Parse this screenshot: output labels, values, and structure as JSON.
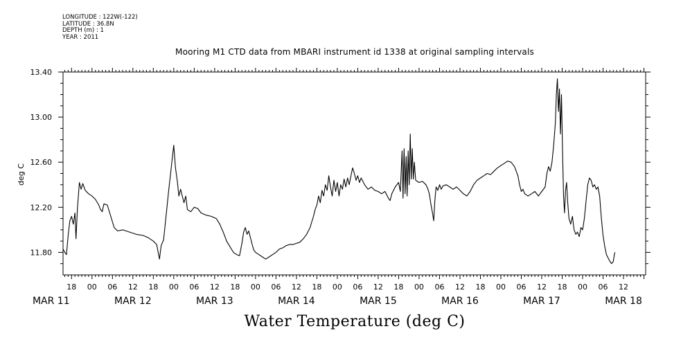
{
  "header": {
    "longitude": "LONGITUDE : 122W(-122)",
    "latitude": "LATITUDE : 36.8N",
    "depth": "DEPTH (m) : 1",
    "year": "YEAR : 2011"
  },
  "chart_data": {
    "type": "line",
    "title": "Mooring M1 CTD data from MBARI instrument id 1338 at original sampling intervals",
    "bottom_title": "Water Temperature (deg C)",
    "ylabel": "deg C",
    "ylim": [
      11.6,
      13.4
    ],
    "yticks": [
      11.8,
      12.2,
      12.6,
      13.0,
      13.4
    ],
    "ytick_labels": [
      "11.80",
      "12.20",
      "12.60",
      "13.00",
      "13.40"
    ],
    "x_units": "hours from MAR 11 00:00",
    "xlim": [
      15.5,
      186.5
    ],
    "hour_ticks": [
      {
        "h": 18,
        "label": "18"
      },
      {
        "h": 24,
        "label": "00"
      },
      {
        "h": 30,
        "label": "06"
      },
      {
        "h": 36,
        "label": "12"
      },
      {
        "h": 42,
        "label": "18"
      },
      {
        "h": 48,
        "label": "00"
      },
      {
        "h": 54,
        "label": "06"
      },
      {
        "h": 60,
        "label": "12"
      },
      {
        "h": 66,
        "label": "18"
      },
      {
        "h": 72,
        "label": "00"
      },
      {
        "h": 78,
        "label": "06"
      },
      {
        "h": 84,
        "label": "12"
      },
      {
        "h": 90,
        "label": "18"
      },
      {
        "h": 96,
        "label": "00"
      },
      {
        "h": 102,
        "label": "06"
      },
      {
        "h": 108,
        "label": "12"
      },
      {
        "h": 114,
        "label": "18"
      },
      {
        "h": 120,
        "label": "00"
      },
      {
        "h": 126,
        "label": "06"
      },
      {
        "h": 132,
        "label": "12"
      },
      {
        "h": 138,
        "label": "18"
      },
      {
        "h": 144,
        "label": "00"
      },
      {
        "h": 150,
        "label": "06"
      },
      {
        "h": 156,
        "label": "12"
      },
      {
        "h": 162,
        "label": "18"
      },
      {
        "h": 168,
        "label": "00"
      },
      {
        "h": 174,
        "label": "06"
      },
      {
        "h": 180,
        "label": "12"
      }
    ],
    "day_labels": [
      {
        "h": 12,
        "label": "MAR 11"
      },
      {
        "h": 36,
        "label": "MAR 12"
      },
      {
        "h": 60,
        "label": "MAR 13"
      },
      {
        "h": 84,
        "label": "MAR 14"
      },
      {
        "h": 108,
        "label": "MAR 15"
      },
      {
        "h": 132,
        "label": "MAR 16"
      },
      {
        "h": 156,
        "label": "MAR 17"
      },
      {
        "h": 180,
        "label": "MAR 18"
      }
    ],
    "series": [
      {
        "values": [
          [
            15.5,
            11.83
          ],
          [
            16.0,
            11.8
          ],
          [
            16.5,
            11.78
          ],
          [
            17.0,
            11.95
          ],
          [
            17.5,
            12.08
          ],
          [
            18.0,
            12.12
          ],
          [
            18.5,
            12.05
          ],
          [
            19.0,
            12.15
          ],
          [
            19.3,
            11.92
          ],
          [
            19.7,
            12.18
          ],
          [
            20.0,
            12.3
          ],
          [
            20.3,
            12.42
          ],
          [
            20.8,
            12.36
          ],
          [
            21.3,
            12.41
          ],
          [
            22.0,
            12.35
          ],
          [
            23.0,
            12.32
          ],
          [
            24.0,
            12.3
          ],
          [
            25.0,
            12.27
          ],
          [
            26.0,
            12.22
          ],
          [
            26.5,
            12.18
          ],
          [
            27.0,
            12.16
          ],
          [
            27.5,
            12.23
          ],
          [
            28.5,
            12.22
          ],
          [
            29.5,
            12.12
          ],
          [
            30.5,
            12.02
          ],
          [
            31.5,
            11.99
          ],
          [
            33.0,
            12.0
          ],
          [
            35.0,
            11.98
          ],
          [
            37.0,
            11.96
          ],
          [
            39.0,
            11.95
          ],
          [
            40.5,
            11.93
          ],
          [
            42.0,
            11.9
          ],
          [
            43.0,
            11.87
          ],
          [
            43.8,
            11.74
          ],
          [
            44.3,
            11.86
          ],
          [
            45.0,
            11.91
          ],
          [
            45.5,
            12.05
          ],
          [
            46.0,
            12.2
          ],
          [
            46.5,
            12.35
          ],
          [
            47.0,
            12.48
          ],
          [
            47.5,
            12.62
          ],
          [
            48.0,
            12.75
          ],
          [
            48.5,
            12.55
          ],
          [
            49.0,
            12.44
          ],
          [
            49.5,
            12.3
          ],
          [
            50.0,
            12.36
          ],
          [
            50.5,
            12.3
          ],
          [
            51.0,
            12.24
          ],
          [
            51.5,
            12.3
          ],
          [
            52.0,
            12.18
          ],
          [
            53.0,
            12.16
          ],
          [
            54.0,
            12.2
          ],
          [
            55.0,
            12.19
          ],
          [
            56.0,
            12.15
          ],
          [
            57.5,
            12.13
          ],
          [
            59.0,
            12.12
          ],
          [
            60.5,
            12.1
          ],
          [
            61.5,
            12.05
          ],
          [
            62.5,
            11.98
          ],
          [
            63.5,
            11.9
          ],
          [
            64.5,
            11.85
          ],
          [
            65.5,
            11.8
          ],
          [
            66.5,
            11.78
          ],
          [
            67.3,
            11.77
          ],
          [
            68.0,
            11.88
          ],
          [
            68.5,
            11.98
          ],
          [
            69.0,
            12.02
          ],
          [
            69.5,
            11.96
          ],
          [
            70.0,
            11.99
          ],
          [
            70.5,
            11.93
          ],
          [
            71.0,
            11.87
          ],
          [
            71.5,
            11.82
          ],
          [
            72.0,
            11.8
          ],
          [
            73.0,
            11.78
          ],
          [
            74.0,
            11.76
          ],
          [
            75.0,
            11.74
          ],
          [
            76.0,
            11.76
          ],
          [
            77.0,
            11.78
          ],
          [
            78.0,
            11.8
          ],
          [
            79.0,
            11.83
          ],
          [
            80.0,
            11.84
          ],
          [
            81.0,
            11.86
          ],
          [
            82.0,
            11.87
          ],
          [
            83.0,
            11.87
          ],
          [
            84.0,
            11.88
          ],
          [
            85.0,
            11.89
          ],
          [
            86.0,
            11.92
          ],
          [
            87.0,
            11.96
          ],
          [
            88.0,
            12.02
          ],
          [
            88.5,
            12.07
          ],
          [
            89.0,
            12.12
          ],
          [
            89.5,
            12.18
          ],
          [
            90.0,
            12.22
          ],
          [
            90.5,
            12.3
          ],
          [
            91.0,
            12.24
          ],
          [
            91.5,
            12.35
          ],
          [
            92.0,
            12.3
          ],
          [
            92.5,
            12.4
          ],
          [
            93.0,
            12.35
          ],
          [
            93.5,
            12.48
          ],
          [
            94.0,
            12.38
          ],
          [
            94.5,
            12.3
          ],
          [
            95.0,
            12.44
          ],
          [
            95.5,
            12.34
          ],
          [
            96.0,
            12.42
          ],
          [
            96.5,
            12.3
          ],
          [
            97.0,
            12.4
          ],
          [
            97.5,
            12.36
          ],
          [
            98.0,
            12.45
          ],
          [
            98.5,
            12.38
          ],
          [
            99.0,
            12.46
          ],
          [
            99.5,
            12.4
          ],
          [
            100.0,
            12.48
          ],
          [
            100.5,
            12.55
          ],
          [
            101.0,
            12.5
          ],
          [
            101.5,
            12.44
          ],
          [
            102.0,
            12.48
          ],
          [
            102.5,
            12.42
          ],
          [
            103.0,
            12.46
          ],
          [
            104.0,
            12.4
          ],
          [
            105.0,
            12.36
          ],
          [
            106.0,
            12.38
          ],
          [
            107.0,
            12.35
          ],
          [
            108.0,
            12.34
          ],
          [
            109.0,
            12.32
          ],
          [
            110.0,
            12.34
          ],
          [
            111.0,
            12.28
          ],
          [
            111.5,
            12.26
          ],
          [
            112.0,
            12.32
          ],
          [
            113.0,
            12.38
          ],
          [
            114.0,
            12.42
          ],
          [
            114.5,
            12.34
          ],
          [
            115.0,
            12.7
          ],
          [
            115.3,
            12.28
          ],
          [
            115.6,
            12.72
          ],
          [
            115.9,
            12.32
          ],
          [
            116.2,
            12.65
          ],
          [
            116.5,
            12.3
          ],
          [
            116.8,
            12.7
          ],
          [
            117.1,
            12.4
          ],
          [
            117.4,
            12.85
          ],
          [
            117.7,
            12.45
          ],
          [
            118.0,
            12.72
          ],
          [
            118.3,
            12.45
          ],
          [
            118.6,
            12.6
          ],
          [
            119.0,
            12.44
          ],
          [
            120.0,
            12.42
          ],
          [
            121.0,
            12.43
          ],
          [
            122.0,
            12.4
          ],
          [
            122.5,
            12.37
          ],
          [
            123.0,
            12.32
          ],
          [
            123.5,
            12.22
          ],
          [
            124.0,
            12.14
          ],
          [
            124.3,
            12.08
          ],
          [
            124.6,
            12.25
          ],
          [
            125.0,
            12.38
          ],
          [
            125.5,
            12.35
          ],
          [
            126.0,
            12.4
          ],
          [
            126.5,
            12.36
          ],
          [
            127.0,
            12.39
          ],
          [
            128.0,
            12.4
          ],
          [
            129.0,
            12.38
          ],
          [
            130.0,
            12.36
          ],
          [
            131.0,
            12.38
          ],
          [
            132.0,
            12.35
          ],
          [
            133.0,
            12.32
          ],
          [
            134.0,
            12.3
          ],
          [
            135.0,
            12.34
          ],
          [
            136.0,
            12.4
          ],
          [
            137.0,
            12.44
          ],
          [
            138.0,
            12.46
          ],
          [
            139.0,
            12.48
          ],
          [
            140.0,
            12.5
          ],
          [
            141.0,
            12.49
          ],
          [
            142.0,
            12.52
          ],
          [
            143.0,
            12.55
          ],
          [
            144.0,
            12.57
          ],
          [
            145.0,
            12.59
          ],
          [
            146.0,
            12.61
          ],
          [
            147.0,
            12.6
          ],
          [
            148.0,
            12.56
          ],
          [
            149.0,
            12.48
          ],
          [
            149.5,
            12.4
          ],
          [
            150.0,
            12.34
          ],
          [
            150.5,
            12.36
          ],
          [
            151.0,
            12.32
          ],
          [
            152.0,
            12.3
          ],
          [
            153.0,
            12.32
          ],
          [
            154.0,
            12.34
          ],
          [
            155.0,
            12.3
          ],
          [
            156.0,
            12.34
          ],
          [
            157.0,
            12.38
          ],
          [
            157.5,
            12.5
          ],
          [
            158.0,
            12.56
          ],
          [
            158.5,
            12.52
          ],
          [
            159.0,
            12.6
          ],
          [
            159.5,
            12.75
          ],
          [
            160.0,
            12.95
          ],
          [
            160.3,
            13.2
          ],
          [
            160.6,
            13.34
          ],
          [
            160.9,
            13.05
          ],
          [
            161.2,
            13.25
          ],
          [
            161.5,
            12.85
          ],
          [
            161.8,
            13.2
          ],
          [
            162.1,
            12.7
          ],
          [
            162.4,
            12.3
          ],
          [
            162.7,
            12.15
          ],
          [
            163.0,
            12.35
          ],
          [
            163.3,
            12.42
          ],
          [
            163.6,
            12.25
          ],
          [
            164.0,
            12.1
          ],
          [
            164.5,
            12.05
          ],
          [
            165.0,
            12.12
          ],
          [
            165.5,
            12.0
          ],
          [
            166.0,
            11.96
          ],
          [
            166.5,
            11.98
          ],
          [
            167.0,
            11.94
          ],
          [
            167.5,
            12.02
          ],
          [
            168.0,
            12.0
          ],
          [
            168.5,
            12.1
          ],
          [
            169.0,
            12.25
          ],
          [
            169.5,
            12.4
          ],
          [
            170.0,
            12.46
          ],
          [
            170.5,
            12.44
          ],
          [
            171.0,
            12.38
          ],
          [
            171.5,
            12.4
          ],
          [
            172.0,
            12.36
          ],
          [
            172.5,
            12.38
          ],
          [
            173.0,
            12.3
          ],
          [
            173.5,
            12.1
          ],
          [
            174.0,
            11.95
          ],
          [
            174.5,
            11.85
          ],
          [
            175.0,
            11.78
          ],
          [
            175.5,
            11.75
          ],
          [
            176.0,
            11.72
          ],
          [
            176.5,
            11.7
          ],
          [
            177.0,
            11.72
          ],
          [
            177.3,
            11.78
          ],
          [
            177.5,
            11.8
          ]
        ]
      }
    ]
  }
}
